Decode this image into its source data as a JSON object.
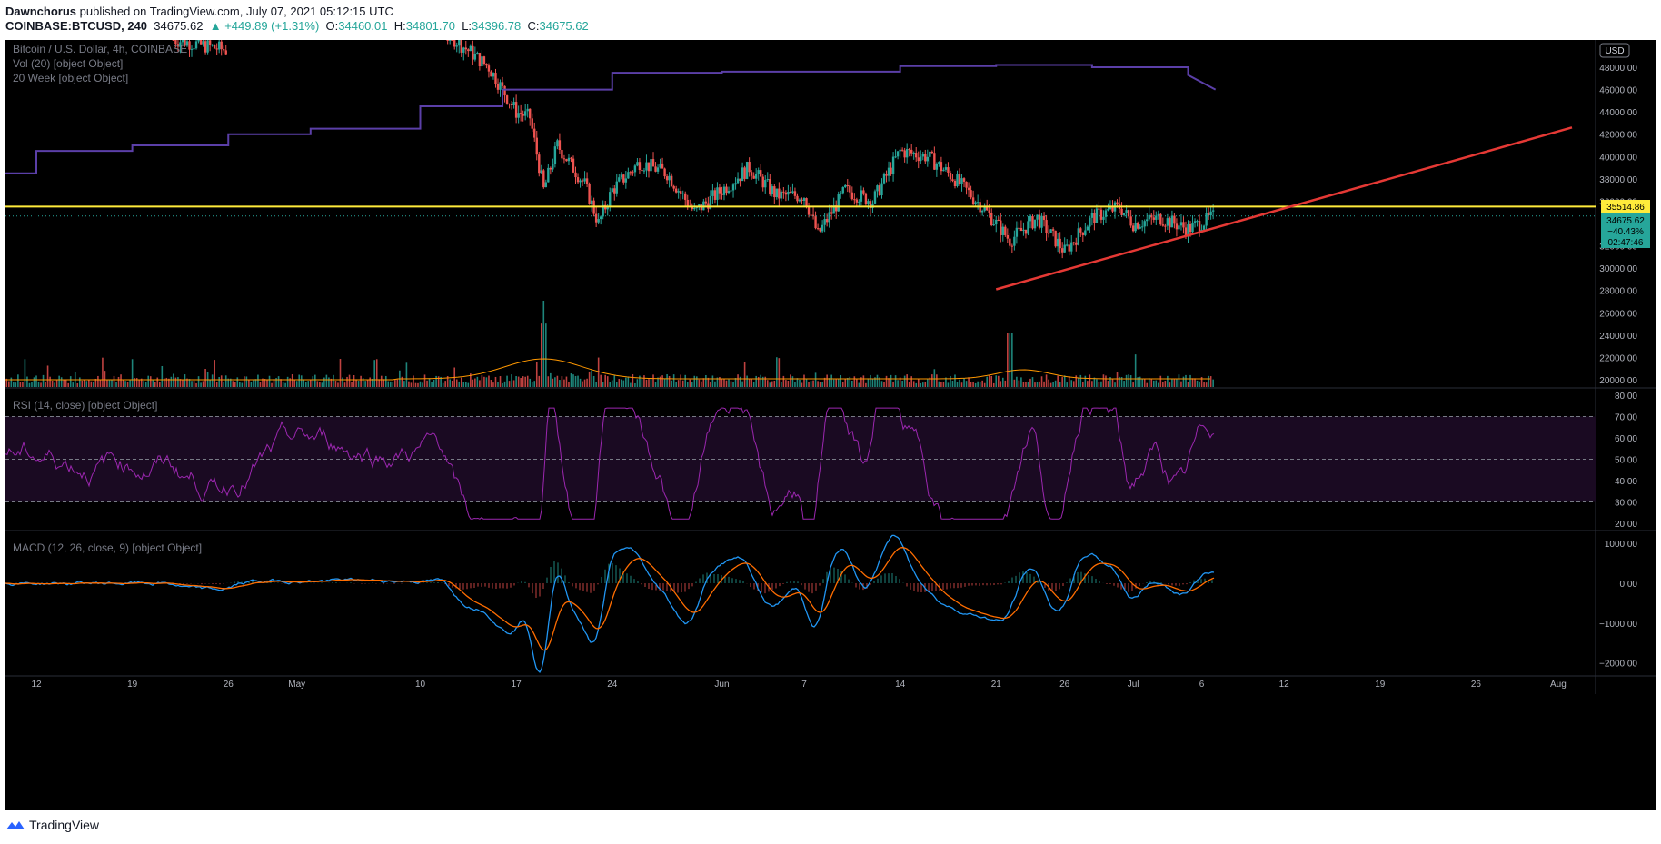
{
  "header": {
    "author": "Dawnchorus",
    "published": "published on TradingView.com, July 07, 2021 05:12:15 UTC",
    "symbol": "COINBASE:BTCUSD, 240",
    "last": "34675.62",
    "change": "▲ +449.89 (+1.31%)",
    "o_label": "O:",
    "o": "34460.01",
    "h_label": "H:",
    "h": "34801.70",
    "l_label": "L:",
    "l": "34396.78",
    "c_label": "C:",
    "c": "34675.62"
  },
  "legend": {
    "main": "Bitcoin / U.S. Dollar, 4h, COINBASE",
    "vol": "Vol (20) [object Object]",
    "ma": "20 Week [object Object]",
    "rsi": "RSI (14, close) [object Object]",
    "macd": "MACD (12, 26, close, 9) [object Object]"
  },
  "currency_badge": "USD",
  "price_tags": {
    "yellow": "35514.86",
    "last": "34675.62",
    "pct": "−40.43%",
    "timer": "02:47:46"
  },
  "footer": {
    "brand": "TradingView"
  },
  "colors": {
    "up": "#26a69a",
    "down": "#ef5350",
    "ma": "#5b3fa8",
    "yellow": "#ffeb3b",
    "trend": "#e53935",
    "rsi": "#9c27b0",
    "macd": "#2196f3",
    "signal": "#ff6d00",
    "vol_ma": "#ff9800"
  },
  "chart_data": [
    {
      "type": "candlestick",
      "title": "Bitcoin / U.S. Dollar, 4h, COINBASE",
      "x_ticks": [
        "12",
        "19",
        "26",
        "May",
        "10",
        "17",
        "24",
        "Jun",
        "7",
        "14",
        "21",
        "26",
        "Jul",
        "6",
        "12",
        "19",
        "26",
        "Aug"
      ],
      "y_ticks": [
        "48000.00",
        "46000.00",
        "44000.00",
        "42000.00",
        "40000.00",
        "38000.00",
        "36000.00",
        "32000.00",
        "30000.00",
        "28000.00",
        "26000.00",
        "24000.00",
        "22000.00",
        "20000.00"
      ],
      "ylim": [
        19500,
        51500
      ],
      "close_path": [
        {
          "d": "Apr 22",
          "v": 50500
        },
        {
          "d": "Apr 26",
          "v": 49500
        },
        {
          "d": "May 12",
          "v": 51000
        },
        {
          "d": "May 15",
          "v": 48000
        },
        {
          "d": "May 17",
          "v": 44000
        },
        {
          "d": "May 18",
          "v": 43500
        },
        {
          "d": "May 19",
          "v": 37000
        },
        {
          "d": "May 20",
          "v": 41000
        },
        {
          "d": "May 22",
          "v": 37500
        },
        {
          "d": "May 23",
          "v": 34000
        },
        {
          "d": "May 24",
          "v": 37000
        },
        {
          "d": "May 26",
          "v": 39500
        },
        {
          "d": "May 28",
          "v": 38500
        },
        {
          "d": "May 30",
          "v": 35000
        },
        {
          "d": "Jun 1",
          "v": 37000
        },
        {
          "d": "Jun 3",
          "v": 39000
        },
        {
          "d": "Jun 5",
          "v": 36500
        },
        {
          "d": "Jun 7",
          "v": 36500
        },
        {
          "d": "Jun 8",
          "v": 33000
        },
        {
          "d": "Jun 10",
          "v": 37000
        },
        {
          "d": "Jun 12",
          "v": 36000
        },
        {
          "d": "Jun 14",
          "v": 40500
        },
        {
          "d": "Jun 16",
          "v": 40000
        },
        {
          "d": "Jun 18",
          "v": 38000
        },
        {
          "d": "Jun 20",
          "v": 35500
        },
        {
          "d": "Jun 22",
          "v": 32500
        },
        {
          "d": "Jun 24",
          "v": 34500
        },
        {
          "d": "Jun 26",
          "v": 31500
        },
        {
          "d": "Jun 28",
          "v": 34500
        },
        {
          "d": "Jun 30",
          "v": 35500
        },
        {
          "d": "Jul 1",
          "v": 34000
        },
        {
          "d": "Jul 3",
          "v": 34500
        },
        {
          "d": "Jul 5",
          "v": 33500
        },
        {
          "d": "Jul 7",
          "v": 34675.62
        }
      ],
      "series": [
        {
          "name": "20 Week",
          "steps": [
            {
              "d": "Apr 8",
              "v": 38500
            },
            {
              "d": "Apr 12",
              "v": 40500
            },
            {
              "d": "Apr 19",
              "v": 41000
            },
            {
              "d": "Apr 26",
              "v": 42000
            },
            {
              "d": "May 2",
              "v": 42500
            },
            {
              "d": "May 10",
              "v": 44500
            },
            {
              "d": "May 16",
              "v": 46000
            },
            {
              "d": "May 24",
              "v": 47500
            },
            {
              "d": "Jun 1",
              "v": 47600
            },
            {
              "d": "Jun 14",
              "v": 48100
            },
            {
              "d": "Jun 21",
              "v": 48200
            },
            {
              "d": "Jun 28",
              "v": 48000
            },
            {
              "d": "Jul 5",
              "v": 47300
            },
            {
              "d": "Jul 7",
              "v": 46000
            }
          ]
        }
      ],
      "horizontal_level": 35514.86,
      "trendline": [
        {
          "d": "Jun 21",
          "v": 28100
        },
        {
          "d": "Aug 2",
          "v": 42600
        }
      ]
    },
    {
      "type": "bar",
      "title": "Vol (20)",
      "note": "volume histogram with orange moving average"
    },
    {
      "type": "line",
      "title": "RSI (14, close)",
      "y_ticks": [
        "80.00",
        "70.00",
        "60.00",
        "50.00",
        "40.00",
        "30.00",
        "20.00"
      ],
      "ylim": [
        18,
        82
      ],
      "bands": [
        30,
        50,
        70
      ]
    },
    {
      "type": "line",
      "title": "MACD (12, 26, close, 9)",
      "y_ticks": [
        "1000.00",
        "0.00",
        "−1000.00",
        "−2000.00"
      ],
      "ylim": [
        -2800,
        1300
      ]
    }
  ]
}
